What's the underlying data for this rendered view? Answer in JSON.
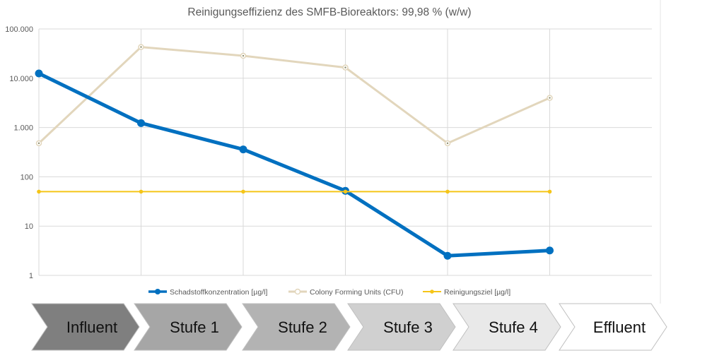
{
  "chart_data": {
    "type": "line",
    "title": "Reinigungseffizienz des SMFB-Bioreaktors: 99,98 % (w/w)",
    "xlabel": "",
    "ylabel": "",
    "y_scale": "log",
    "ylim": [
      1,
      100000
    ],
    "y_ticks": [
      {
        "value": 1,
        "label": "1"
      },
      {
        "value": 10,
        "label": "10"
      },
      {
        "value": 100,
        "label": "100"
      },
      {
        "value": 1000,
        "label": "1.000"
      },
      {
        "value": 10000,
        "label": "10.000"
      },
      {
        "value": 100000,
        "label": "100.000"
      }
    ],
    "categories": [
      "Influent",
      "Stufe 1",
      "Stufe 2",
      "Stufe 3",
      "Stufe 4",
      "Effluent"
    ],
    "grid": true,
    "legend_position": "bottom",
    "series": [
      {
        "name": "Schadstoffkonzentration [µg/l]",
        "color": "#0070C0",
        "values": [
          12500,
          1230,
          360,
          52,
          2.5,
          3.2
        ]
      },
      {
        "name": "Colony Forming Units (CFU)",
        "color": "#E2D6BC",
        "values": [
          480,
          43000,
          28500,
          16500,
          480,
          4000
        ]
      },
      {
        "name": "Reinigungsziel [µg/l]",
        "color": "#F5C518",
        "values": [
          50,
          50,
          50,
          50,
          50,
          50
        ]
      }
    ]
  },
  "process_stages": [
    {
      "label": "Influent",
      "fill": "#7f7f7f"
    },
    {
      "label": "Stufe 1",
      "fill": "#a6a6a6"
    },
    {
      "label": "Stufe 2",
      "fill": "#b3b3b3"
    },
    {
      "label": "Stufe 3",
      "fill": "#d0d0d0"
    },
    {
      "label": "Stufe 4",
      "fill": "#e9e9e9"
    },
    {
      "label": "Effluent",
      "fill": "#ffffff"
    }
  ]
}
